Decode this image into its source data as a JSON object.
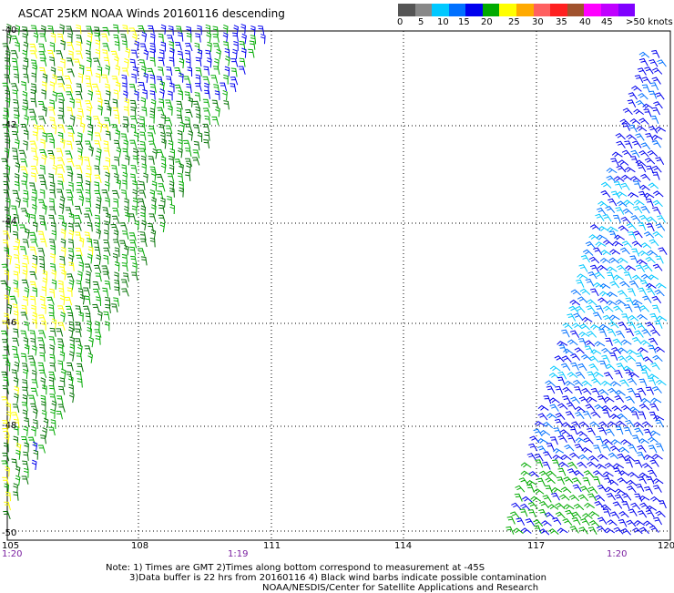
{
  "title": "ASCAT 25KM NOAA Winds 20160116 descending",
  "scale": {
    "colors": [
      "#555555",
      "#888888",
      "#00c8ff",
      "#0070ff",
      "#0000ee",
      "#00aa00",
      "#ffff00",
      "#ffaa00",
      "#ff6060",
      "#ff2020",
      "#a0522d",
      "#ff00ff",
      "#c000ff",
      "#8000ff"
    ],
    "labels": [
      "0",
      "5",
      "10",
      "15",
      "20",
      "25",
      "30",
      "35",
      "40",
      "45",
      ">50 knots"
    ]
  },
  "lat_labels": [
    "-40",
    "-42",
    "-44",
    "-46",
    "-48",
    "-50"
  ],
  "lon_labels": [
    "105",
    "108",
    "111",
    "114",
    "117",
    "120"
  ],
  "time_labels": [
    "1:20",
    "1:19",
    "1:20"
  ],
  "notes": {
    "line1": "Note: 1) Times are GMT 2)Times along bottom correspond to measurement at -45S",
    "line2": "3)Data buffer is 22 hrs from 20160116 4) Black wind barbs indicate possible contamination",
    "line3": "NOAA/NESDIS/Center for Satellite Applications and Research"
  },
  "swath_colors": {
    "west_green": "#00aa00",
    "west_dark": "#007000",
    "west_yellow": "#ffff00",
    "west_blue": "#0000ee",
    "east_blue": "#0000ee",
    "east_mid": "#0070ff",
    "east_cyan": "#00c8ff",
    "east_green": "#00aa00"
  }
}
